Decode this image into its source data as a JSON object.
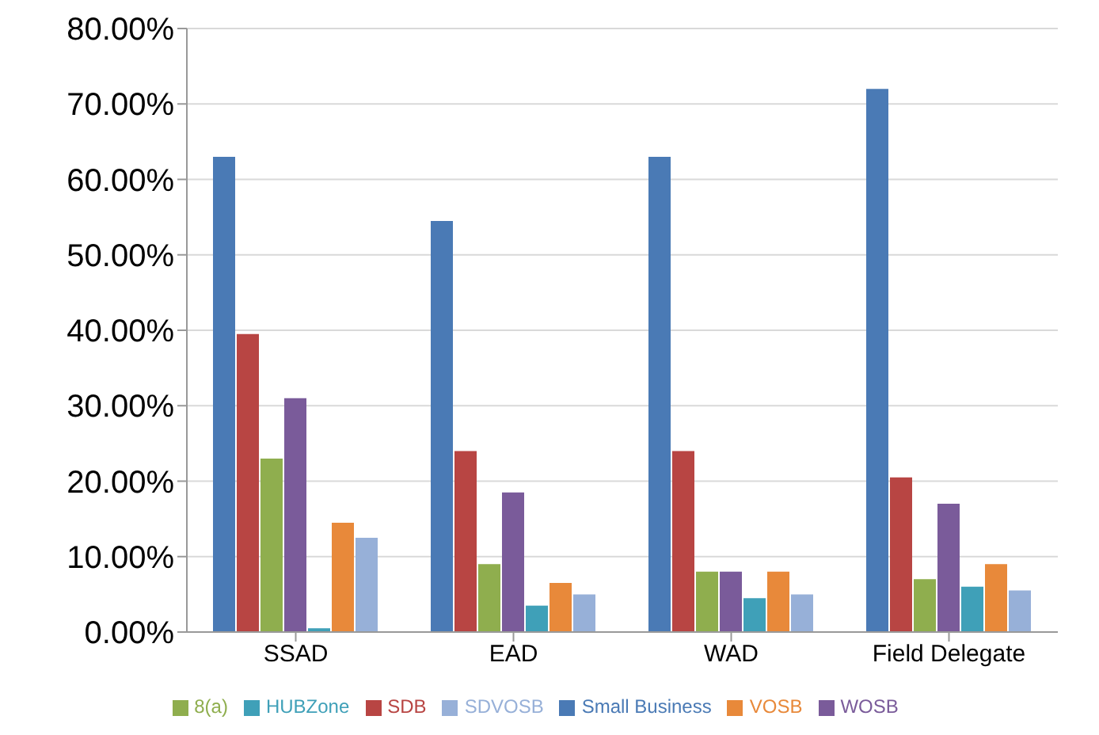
{
  "chart_data": {
    "type": "bar",
    "categories": [
      "SSAD",
      "EAD",
      "WAD",
      "Field Delegate"
    ],
    "series": [
      {
        "name": "Small Business",
        "color": "#4a7ab5",
        "values": [
          63,
          54.5,
          63,
          72
        ]
      },
      {
        "name": "SDB",
        "color": "#b84543",
        "values": [
          39.5,
          24,
          24,
          20.5
        ]
      },
      {
        "name": "8(a)",
        "color": "#8fae4e",
        "values": [
          23,
          9,
          8,
          7
        ]
      },
      {
        "name": "WOSB",
        "color": "#7a5b9a",
        "values": [
          31,
          18.5,
          8,
          17
        ]
      },
      {
        "name": "HUBZone",
        "color": "#3fa0b8",
        "values": [
          0.5,
          3.5,
          4.5,
          6
        ]
      },
      {
        "name": "VOSB",
        "color": "#e8893a",
        "values": [
          14.5,
          6.5,
          8,
          9
        ]
      },
      {
        "name": "SDVOSB",
        "color": "#97b0d8",
        "values": [
          12.5,
          5,
          5,
          5.5
        ]
      }
    ],
    "ylim": [
      0,
      80
    ],
    "yticks": [
      {
        "value": 0,
        "label": "0.00%"
      },
      {
        "value": 10,
        "label": "10.00%"
      },
      {
        "value": 20,
        "label": "20.00%"
      },
      {
        "value": 30,
        "label": "30.00%"
      },
      {
        "value": 40,
        "label": "40.00%"
      },
      {
        "value": 50,
        "label": "50.00%"
      },
      {
        "value": 60,
        "label": "60.00%"
      },
      {
        "value": 70,
        "label": "70.00%"
      },
      {
        "value": 80,
        "label": "80.00%"
      }
    ],
    "grid": "y",
    "legend": "bottom"
  }
}
